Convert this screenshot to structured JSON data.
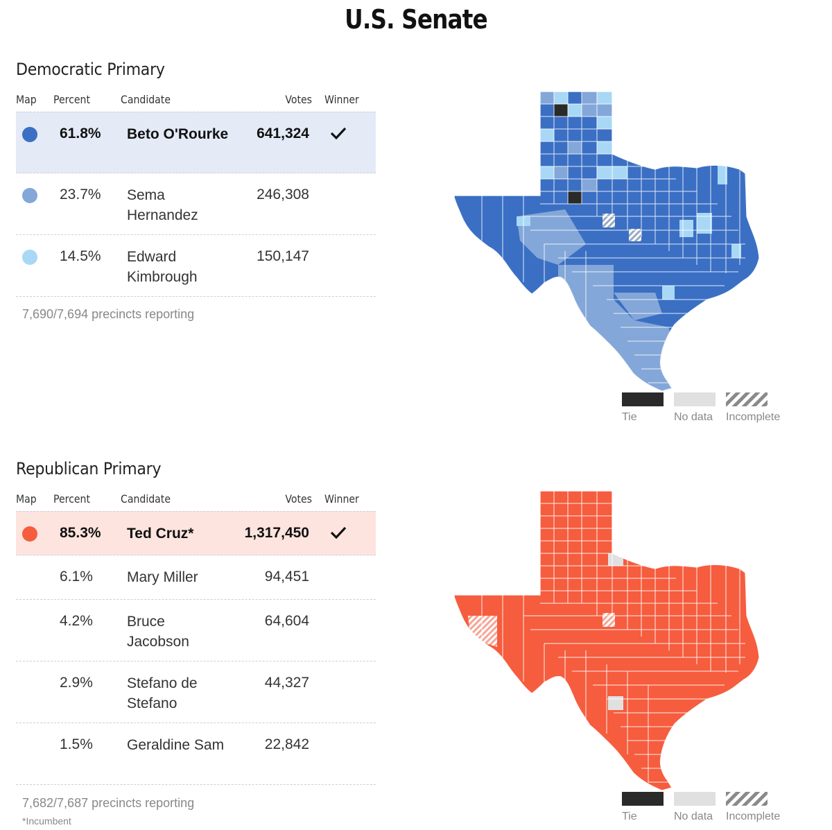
{
  "title": "U.S. Senate",
  "columns": {
    "map": "Map",
    "percent": "Percent",
    "candidate": "Candidate",
    "votes": "Votes",
    "winner": "Winner"
  },
  "colors": {
    "dem_dark": "#3a6fc4",
    "dem_mid": "#83a7d8",
    "dem_light": "#a8d8f5",
    "dem_highlight": "#e4ebf7",
    "rep_dark": "#f65c3e",
    "rep_highlight": "#fde4df",
    "tie": "#2a2a2a",
    "no_data": "#e0e0e0",
    "incomplete_stripe": "#888888"
  },
  "dem": {
    "title": "Democratic Primary",
    "candidates": [
      {
        "percent": "61.8%",
        "name": "Beto O'Rourke",
        "votes": "641,324",
        "winner": true,
        "color": "#3a6fc4"
      },
      {
        "percent": "23.7%",
        "name": "Sema Hernandez",
        "votes": "246,308",
        "winner": false,
        "color": "#83a7d8"
      },
      {
        "percent": "14.5%",
        "name": "Edward Kimbrough",
        "votes": "150,147",
        "winner": false,
        "color": "#a8d8f5"
      }
    ],
    "precincts": "7,690/7,694 precincts reporting"
  },
  "rep": {
    "title": "Republican Primary",
    "candidates": [
      {
        "percent": "85.3%",
        "name": "Ted Cruz*",
        "votes": "1,317,450",
        "winner": true,
        "color": "#f65c3e"
      },
      {
        "percent": "6.1%",
        "name": "Mary Miller",
        "votes": "94,451",
        "winner": false
      },
      {
        "percent": "4.2%",
        "name": "Bruce Jacobson",
        "votes": "64,604",
        "winner": false
      },
      {
        "percent": "2.9%",
        "name": "Stefano de Stefano",
        "votes": "44,327",
        "winner": false
      },
      {
        "percent": "1.5%",
        "name": "Geraldine Sam",
        "votes": "22,842",
        "winner": false
      }
    ],
    "precincts": "7,682/7,687 precincts reporting",
    "footnote": "*Incumbent"
  },
  "legend": {
    "tie": "Tie",
    "no_data": "No data",
    "incomplete": "Incomplete"
  },
  "icons": {
    "winner": "checkmark-icon",
    "candidate_marker": "circle-dot-icon"
  }
}
